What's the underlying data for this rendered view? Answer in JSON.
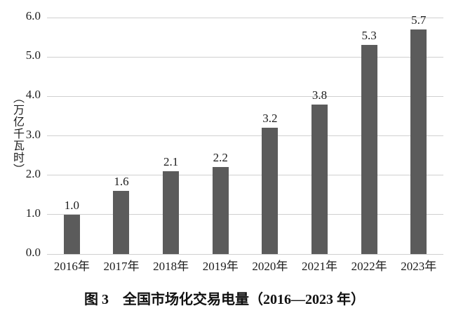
{
  "chart_data": {
    "type": "bar",
    "title": "图 3　全国市场化交易电量（2016—2023 年）",
    "xlabel": "",
    "ylabel": "（万亿千瓦时）",
    "categories": [
      "2016年",
      "2017年",
      "2018年",
      "2019年",
      "2020年",
      "2021年",
      "2022年",
      "2023年"
    ],
    "values": [
      1.0,
      1.6,
      2.1,
      2.2,
      3.2,
      3.8,
      5.3,
      5.7
    ],
    "data_labels": [
      "1.0",
      "1.6",
      "2.1",
      "2.2",
      "3.2",
      "3.8",
      "5.3",
      "5.7"
    ],
    "y_ticks": [
      0.0,
      1.0,
      2.0,
      3.0,
      4.0,
      5.0,
      6.0
    ],
    "y_tick_labels": [
      "0.0",
      "1.0",
      "2.0",
      "3.0",
      "4.0",
      "5.0",
      "6.0"
    ],
    "ylim": [
      0.0,
      6.0
    ],
    "grid": "horizontal",
    "legend_position": "none",
    "bar_color": "#5b5b5b",
    "gridline_color": "#d0d0d0",
    "text_color": "#1c1c1c",
    "background_color": "#ffffff"
  }
}
